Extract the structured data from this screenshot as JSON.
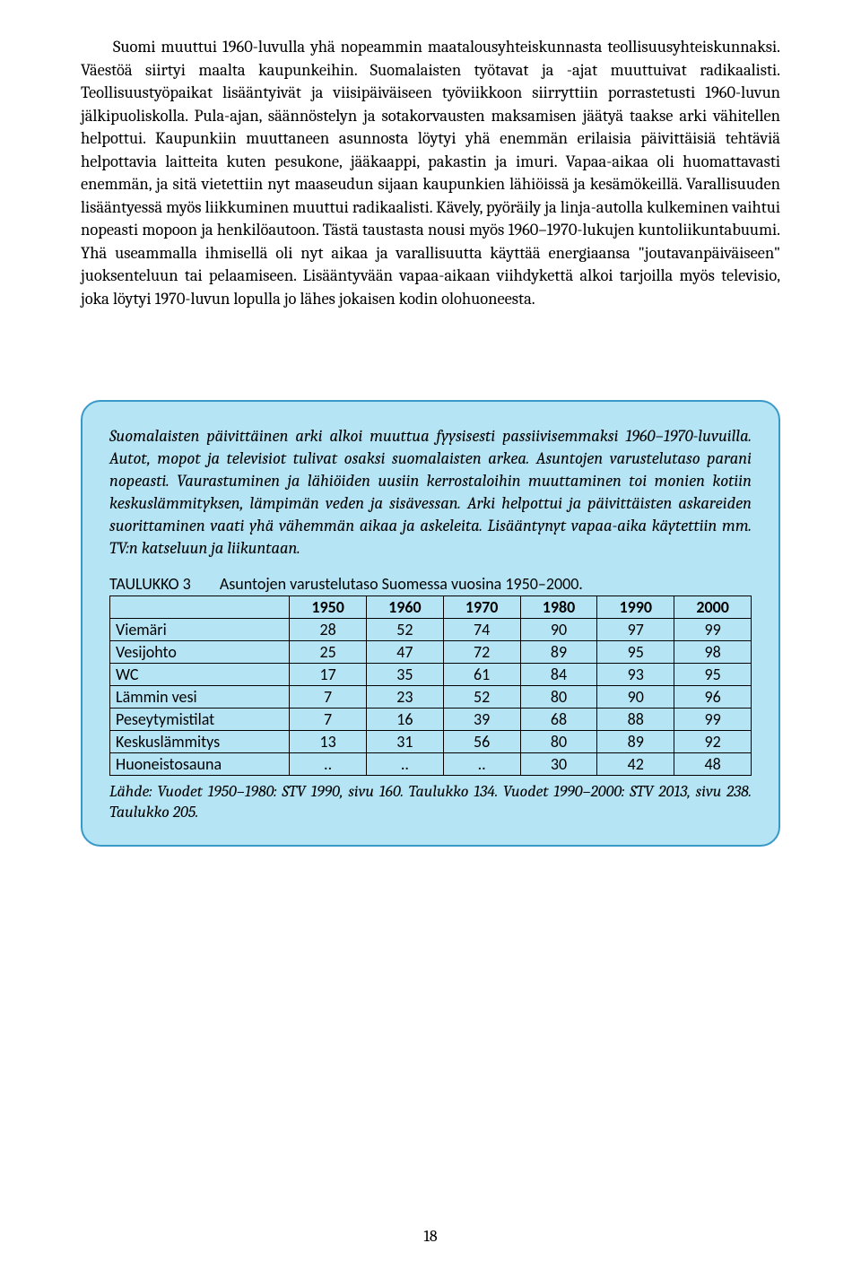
{
  "body_paragraph": "Suomi muuttui 1960-luvulla yhä nopeammin maatalousyhteiskunnasta teollisuusyhteiskunnaksi. Väestöä siirtyi maalta kaupunkeihin. Suomalaisten työtavat ja -ajat muuttuivat radikaalisti. Teollisuustyöpaikat lisääntyivät ja viisipäiväiseen työviikkoon siirryttiin porrastetusti 1960-luvun jälkipuoliskolla. Pula-ajan, säännöstelyn ja sotakorvausten maksamisen jäätyä taakse arki vähitellen helpottui. Kaupunkiin muuttaneen asunnosta löytyi yhä enemmän erilaisia päivittäisiä tehtäviä helpottavia laitteita kuten pesukone, jääkaappi, pakastin ja imuri. Vapaa-aikaa oli huomattavasti enemmän, ja sitä vietettiin nyt maaseudun sijaan kaupunkien lähiöissä ja kesämökeillä. Varallisuuden lisääntyessä myös liikkuminen muuttui radikaalisti. Kävely, pyöräily ja linja-autolla kulkeminen vaihtui nopeasti mopoon ja henkilöautoon. Tästä taustasta nousi myös 1960–1970-lukujen kuntoliikuntabuumi. Yhä useammalla ihmisellä oli nyt aikaa ja varallisuutta käyttää energiaansa \"joutavanpäiväiseen\" juoksenteluun tai pelaamiseen. Lisääntyvään vapaa-aikaan viihdykettä alkoi tarjoilla myös televisio, joka löytyi 1970-luvun lopulla jo lähes jokaisen kodin olohuoneesta.",
  "callout_intro": "Suomalaisten päivittäinen arki alkoi muuttua fyysisesti passiivisemmaksi 1960–1970-luvuilla. Autot, mopot ja televisiot tulivat osaksi suomalaisten arkea. Asuntojen varustelutaso parani nopeasti. Vaurastuminen ja lähiöiden uusiin kerrostaloihin muuttaminen toi monien kotiin keskuslämmityksen, lämpimän veden ja sisävessan. Arki helpottui ja päivittäisten askareiden suorittaminen vaati yhä vähemmän aikaa ja askeleita. Lisääntynyt vapaa-aika käytettiin mm. TV:n katseluun ja liikuntaan.",
  "table": {
    "label": "TAULUKKO 3",
    "title": "Asuntojen varustelutaso Suomessa vuosina 1950–2000.",
    "columns": [
      "1950",
      "1960",
      "1970",
      "1980",
      "1990",
      "2000"
    ],
    "rows": [
      {
        "name": "Viemäri",
        "values": [
          "28",
          "52",
          "74",
          "90",
          "97",
          "99"
        ]
      },
      {
        "name": "Vesijohto",
        "values": [
          "25",
          "47",
          "72",
          "89",
          "95",
          "98"
        ]
      },
      {
        "name": "WC",
        "values": [
          "17",
          "35",
          "61",
          "84",
          "93",
          "95"
        ]
      },
      {
        "name": "Lämmin vesi",
        "values": [
          "7",
          "23",
          "52",
          "80",
          "90",
          "96"
        ]
      },
      {
        "name": "Peseytymistilat",
        "values": [
          "7",
          "16",
          "39",
          "68",
          "88",
          "99"
        ]
      },
      {
        "name": "Keskuslämmitys",
        "values": [
          "13",
          "31",
          "56",
          "80",
          "89",
          "92"
        ]
      },
      {
        "name": "Huoneistosauna",
        "values": [
          "..",
          "..",
          "..",
          "30",
          "42",
          "48"
        ]
      }
    ],
    "source": "Lähde: Vuodet 1950–1980: STV 1990, sivu 160. Taulukko 134. Vuodet 1990–2000: STV 2013, sivu 238. Taulukko 205."
  },
  "page_number": "18",
  "colors": {
    "callout_bg": "#b5e5f5",
    "callout_border": "#3899c9",
    "text": "#000000",
    "page_bg": "#ffffff"
  }
}
